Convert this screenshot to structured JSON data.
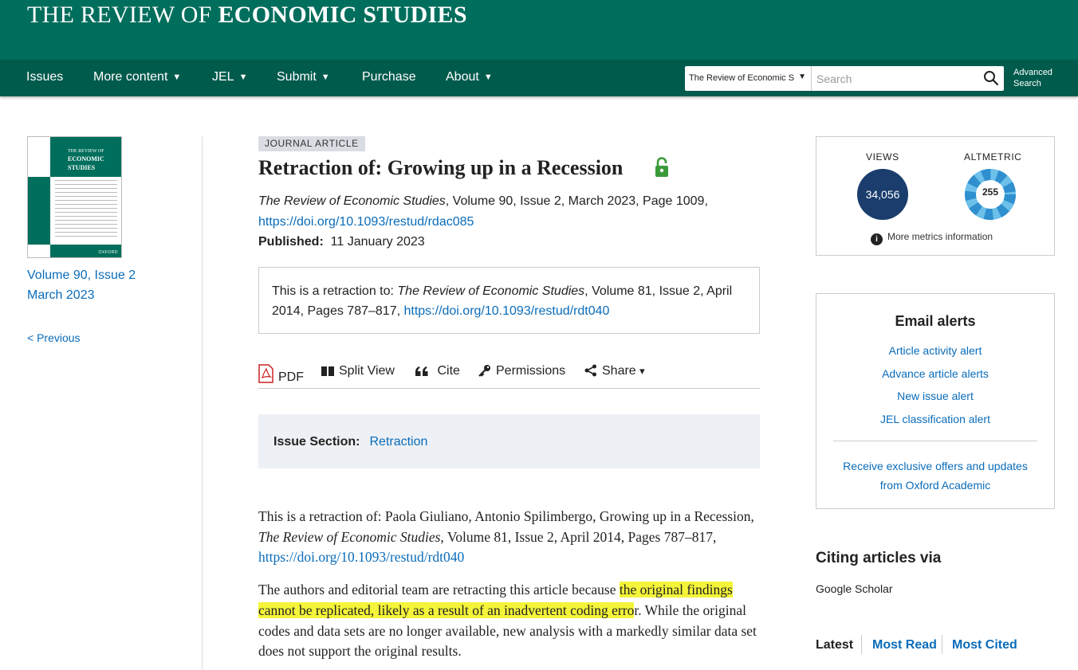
{
  "header": {
    "journal_prefix": "THE REVIEW OF ",
    "journal_bold": "ECONOMIC STUDIES",
    "brand_color": "#006e5c"
  },
  "nav": {
    "items": [
      {
        "label": "Issues"
      },
      {
        "label": "More content",
        "caret": "▼"
      },
      {
        "label": "JEL",
        "caret": "▼"
      },
      {
        "label": "Submit",
        "caret": "▼"
      },
      {
        "label": "Purchase"
      },
      {
        "label": "About",
        "caret": "▼"
      }
    ],
    "search": {
      "scope_value": "The Review of Economic S",
      "placeholder": "Search",
      "icon": "search-icon"
    },
    "advanced_line1": "Advanced",
    "advanced_line2": "Search"
  },
  "sidebar": {
    "cover": {
      "title_small": "THE REVIEW OF",
      "title_bold1": "ECONOMIC",
      "title_bold2": "STUDIES",
      "publisher": "OXFORD"
    },
    "volume_line1": "Volume 90, Issue 2",
    "volume_line2": "March 2023",
    "previous": "< Previous"
  },
  "article": {
    "type_tag": "JOURNAL ARTICLE",
    "title": "Retraction of: Growing up in a Recession",
    "access_icon": "open-access-lock-icon",
    "citation_journal": "The Review of Economic Studies",
    "citation_rest": ", Volume 90, Issue 2, March 2023, Page 1009,",
    "doi": "https://doi.org/10.1093/restud/rdac085",
    "published_label": "Published:",
    "published_date": "11 January 2023",
    "retraction_box": {
      "prefix": "This is a retraction to: ",
      "journal": "The Review of Economic Studies",
      "rest": ", Volume 81, Issue 2, April 2014, Pages 787–817, ",
      "doi": "https://doi.org/10.1093/restud/rdt040"
    },
    "tools": {
      "pdf": "PDF",
      "split_view": "Split View",
      "cite": "Cite",
      "permissions": "Permissions",
      "share": "Share",
      "share_caret": "▾"
    },
    "issue_section_label": "Issue Section:",
    "issue_section_value": "Retraction",
    "body": {
      "p1_prefix": "This is a retraction of: Paola Giuliano, Antonio Spilimbergo, Growing up in a Recession, ",
      "p1_journal": "The Review of Economic Studies",
      "p1_rest": ", Volume 81, Issue 2, April 2014, Pages 787–817, ",
      "p1_doi": "https://doi.org/10.1093/restud/rdt040",
      "p2_prefix": "The authors and editorial team are retracting this article because ",
      "p2_highlight": "the original findings cannot be replicated, likely as a result of an inadvertent coding erro",
      "p2_rest": "r. While the original codes and data sets are no longer available, new analysis with a markedly similar data set does not support the original results."
    }
  },
  "metrics": {
    "views_label": "VIEWS",
    "views_value": "34,056",
    "altmetric_label": "ALTMETRIC",
    "altmetric_value": "255",
    "more_info": "More metrics information",
    "views_color": "#1a3d6d",
    "altmetric_color": "#4aa6d9"
  },
  "email_alerts": {
    "heading": "Email alerts",
    "links": [
      "Article activity alert",
      "Advance article alerts",
      "New issue alert",
      "JEL classification alert"
    ],
    "offers_line1": "Receive exclusive offers and updates",
    "offers_line2": "from Oxford Academic"
  },
  "citing": {
    "heading": "Citing articles via",
    "source": "Google Scholar"
  },
  "bottom_tabs": {
    "latest": "Latest",
    "most_read": "Most Read",
    "most_cited": "Most Cited"
  },
  "highlight_color": "#f4f43a",
  "link_color": "#0a6cba"
}
